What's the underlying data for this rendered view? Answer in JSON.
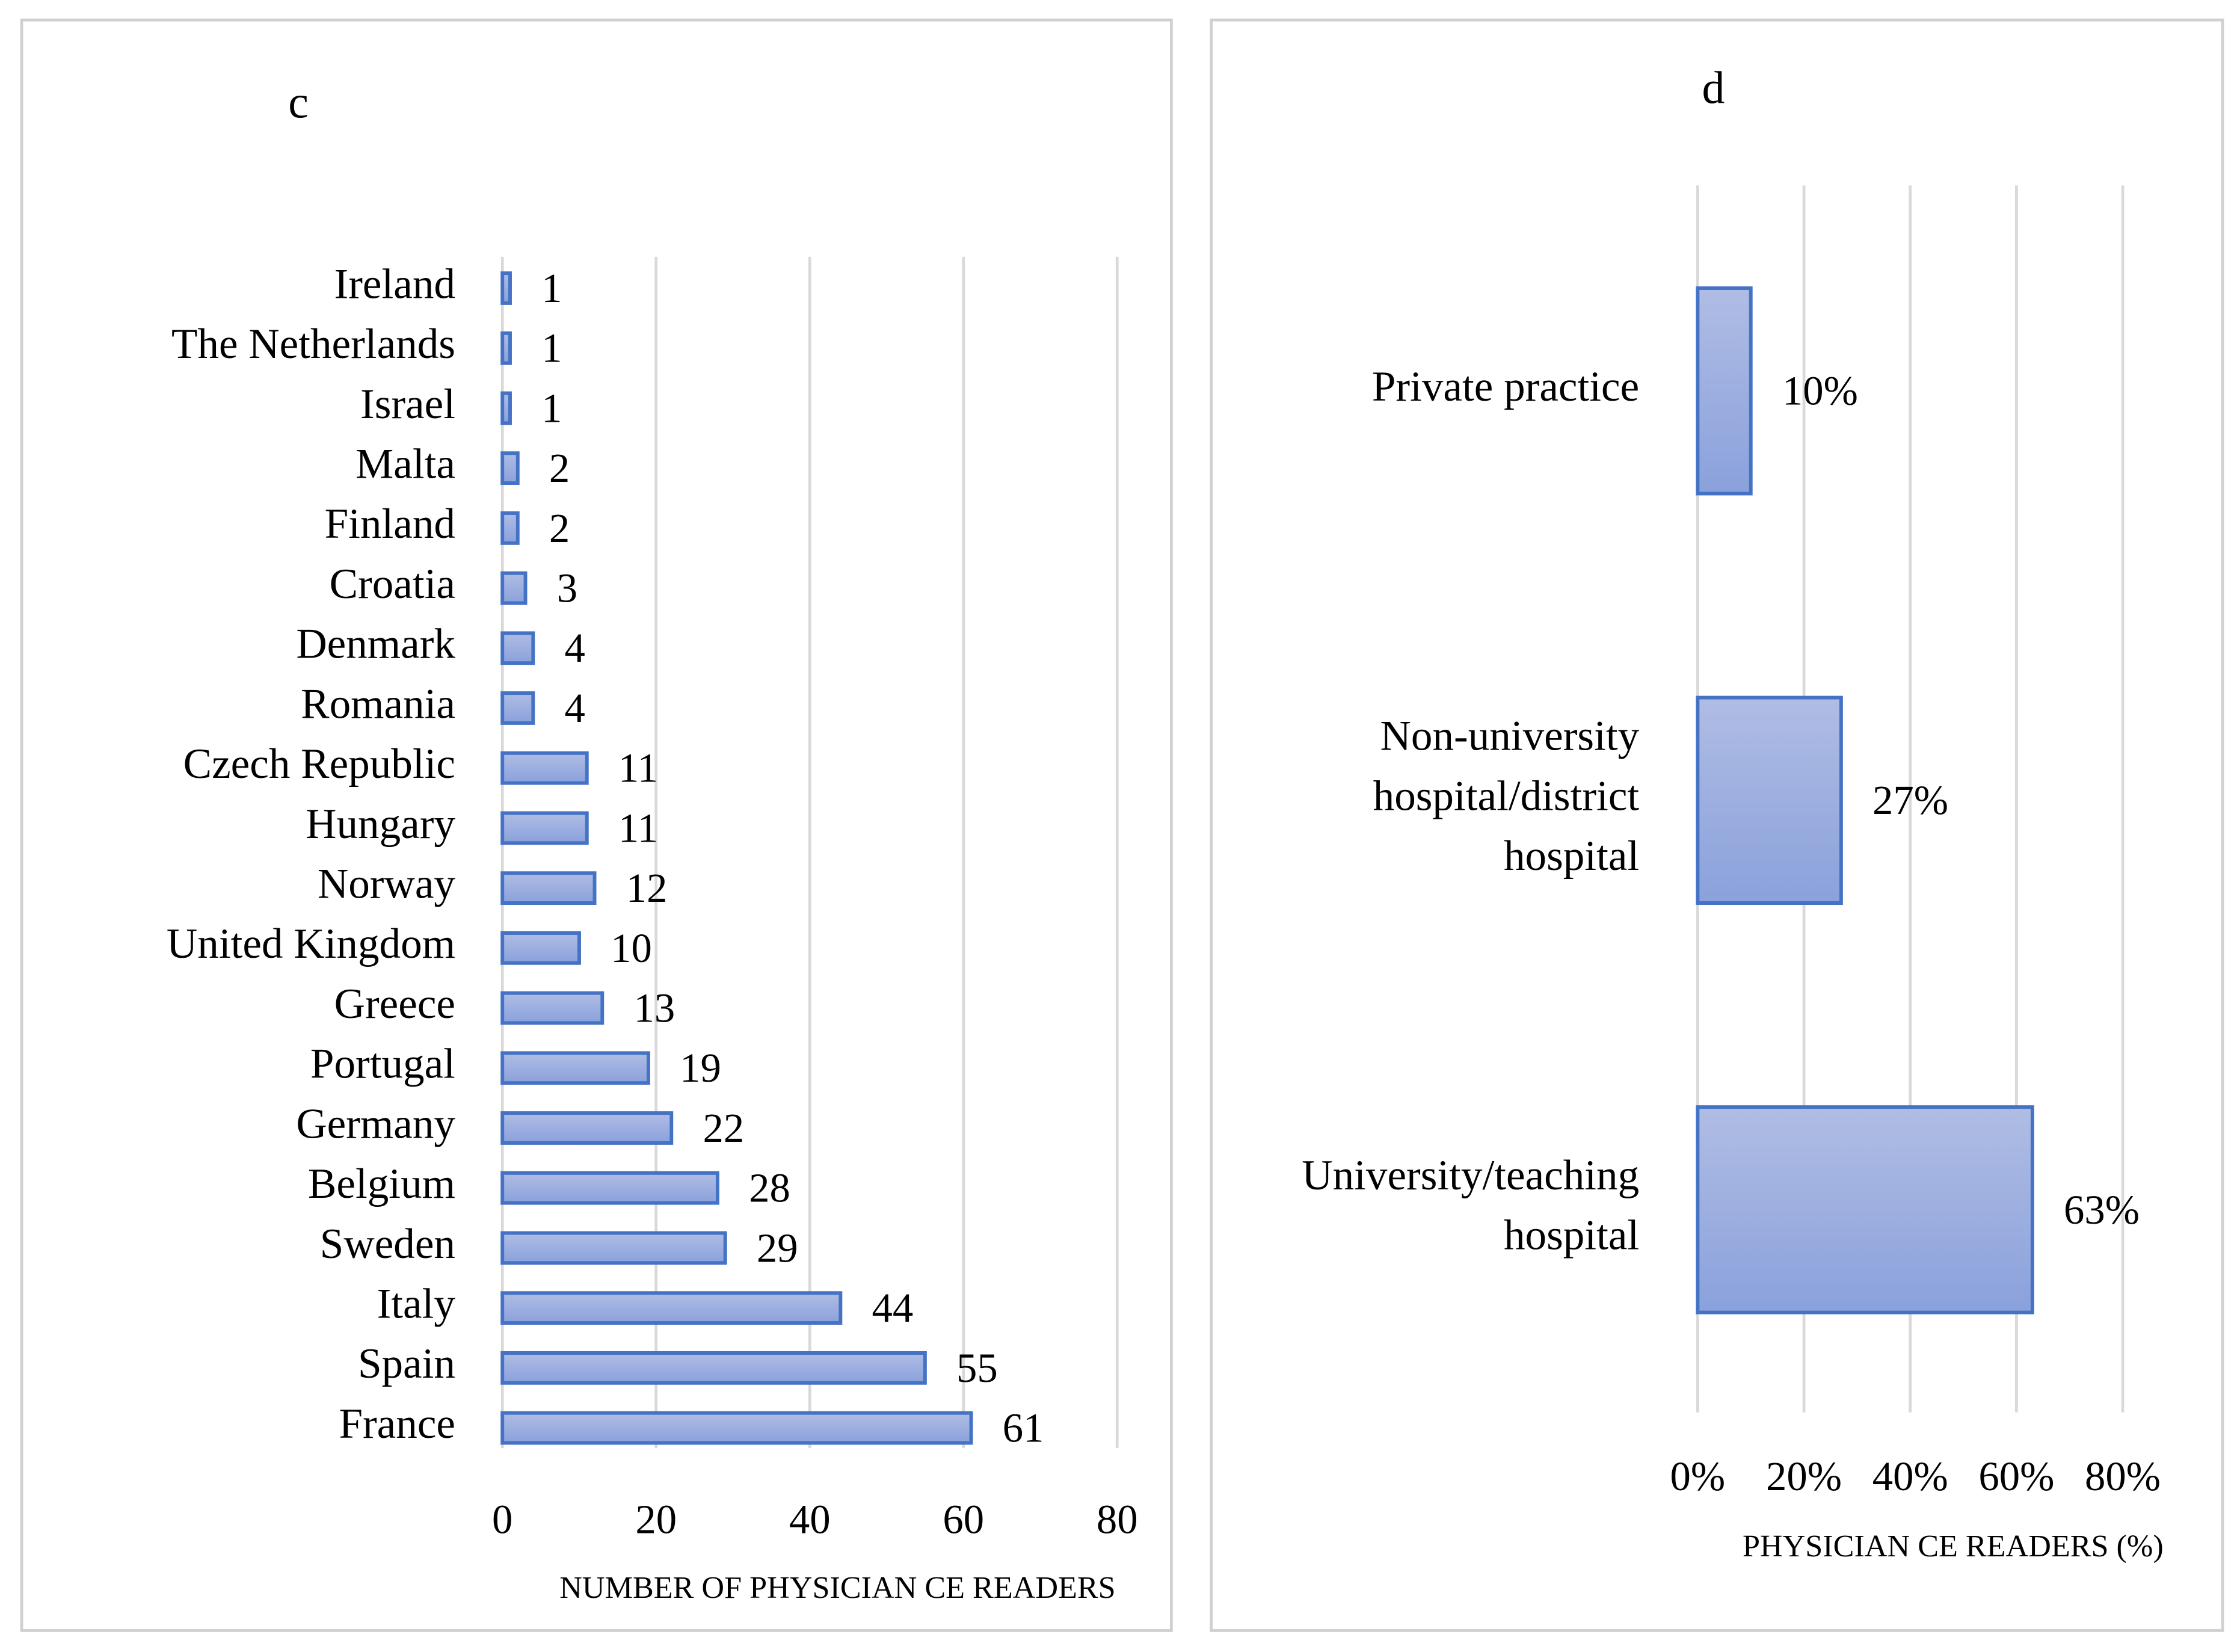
{
  "chart_data": [
    {
      "type": "bar",
      "title": "c",
      "categories": [
        "Ireland",
        "The Netherlands",
        "Israel",
        "Malta",
        "Finland",
        "Croatia",
        "Denmark",
        "Romania",
        "Czech Republic",
        "Hungary",
        "Norway",
        "United Kingdom",
        "Greece",
        "Portugal",
        "Germany",
        "Belgium",
        "Sweden",
        "Italy",
        "Spain",
        "France"
      ],
      "values": [
        1,
        1,
        1,
        2,
        2,
        3,
        4,
        4,
        11,
        11,
        12,
        10,
        13,
        19,
        22,
        28,
        29,
        44,
        55,
        61
      ],
      "color": "#4472c4",
      "x_label": "NUMBER OF PHYSICIAN CE READERS",
      "xlim": [
        0,
        80
      ],
      "xticks": [
        0,
        20,
        40,
        60,
        80
      ],
      "grid": true
    },
    {
      "type": "bar",
      "title": "d",
      "categories": [
        "Private practice",
        "Non-university hospital/district hospital",
        "University/teaching hospital"
      ],
      "values": [
        10,
        27,
        63
      ],
      "value_labels": [
        "10%",
        "27%",
        "63%"
      ],
      "color": "#4472c4",
      "x_label": "PHYSICIAN CE READERS (%)",
      "xlim": [
        0,
        80
      ],
      "xticks": [
        {
          "value": 0,
          "label": "0%"
        },
        {
          "value": 20,
          "label": "20%"
        },
        {
          "value": 40,
          "label": "40%"
        },
        {
          "value": 60,
          "label": "60%"
        },
        {
          "value": 80,
          "label": "80%"
        }
      ],
      "grid": true
    }
  ]
}
